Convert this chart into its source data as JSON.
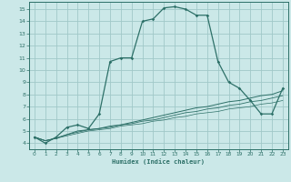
{
  "xlabel": "Humidex (Indice chaleur)",
  "bg_color": "#cbe8e8",
  "grid_color": "#a0c8c8",
  "line_color": "#2d7068",
  "xlim": [
    -0.5,
    23.5
  ],
  "ylim": [
    3.5,
    15.6
  ],
  "xticks": [
    0,
    1,
    2,
    3,
    4,
    5,
    6,
    7,
    8,
    9,
    10,
    11,
    12,
    13,
    14,
    15,
    16,
    17,
    18,
    19,
    20,
    21,
    22,
    23
  ],
  "yticks": [
    4,
    5,
    6,
    7,
    8,
    9,
    10,
    11,
    12,
    13,
    14,
    15
  ],
  "series1": {
    "x": [
      0,
      1,
      2,
      3,
      4,
      5,
      6,
      7,
      8,
      9,
      10,
      11,
      12,
      13,
      14,
      15,
      16,
      17,
      18,
      19,
      20,
      21,
      22,
      23
    ],
    "y": [
      4.5,
      4.0,
      4.5,
      5.3,
      5.5,
      5.2,
      6.4,
      10.7,
      11.0,
      11.0,
      14.0,
      14.2,
      15.1,
      15.2,
      15.0,
      14.5,
      14.5,
      10.7,
      9.0,
      8.5,
      7.5,
      6.4,
      6.4,
      8.5
    ]
  },
  "series2": {
    "x": [
      0,
      1,
      2,
      3,
      4,
      5,
      6,
      7,
      8,
      9,
      10,
      11,
      12,
      13,
      14,
      15,
      16,
      17,
      18,
      19,
      20,
      21,
      22,
      23
    ],
    "y": [
      4.5,
      4.2,
      4.4,
      4.7,
      5.0,
      5.1,
      5.2,
      5.4,
      5.5,
      5.7,
      5.9,
      6.1,
      6.3,
      6.5,
      6.7,
      6.9,
      7.0,
      7.2,
      7.4,
      7.5,
      7.7,
      7.9,
      8.0,
      8.3
    ]
  },
  "series3": {
    "x": [
      0,
      1,
      2,
      3,
      4,
      5,
      6,
      7,
      8,
      9,
      10,
      11,
      12,
      13,
      14,
      15,
      16,
      17,
      18,
      19,
      20,
      21,
      22,
      23
    ],
    "y": [
      4.5,
      4.2,
      4.4,
      4.7,
      4.9,
      5.1,
      5.2,
      5.3,
      5.5,
      5.6,
      5.8,
      5.9,
      6.1,
      6.3,
      6.5,
      6.6,
      6.8,
      6.9,
      7.1,
      7.2,
      7.4,
      7.5,
      7.7,
      7.9
    ]
  },
  "series4": {
    "x": [
      0,
      1,
      2,
      3,
      4,
      5,
      6,
      7,
      8,
      9,
      10,
      11,
      12,
      13,
      14,
      15,
      16,
      17,
      18,
      19,
      20,
      21,
      22,
      23
    ],
    "y": [
      4.5,
      4.2,
      4.4,
      4.6,
      4.8,
      5.0,
      5.1,
      5.2,
      5.4,
      5.5,
      5.6,
      5.8,
      5.9,
      6.1,
      6.2,
      6.4,
      6.5,
      6.6,
      6.8,
      6.9,
      7.0,
      7.2,
      7.3,
      7.5
    ]
  }
}
